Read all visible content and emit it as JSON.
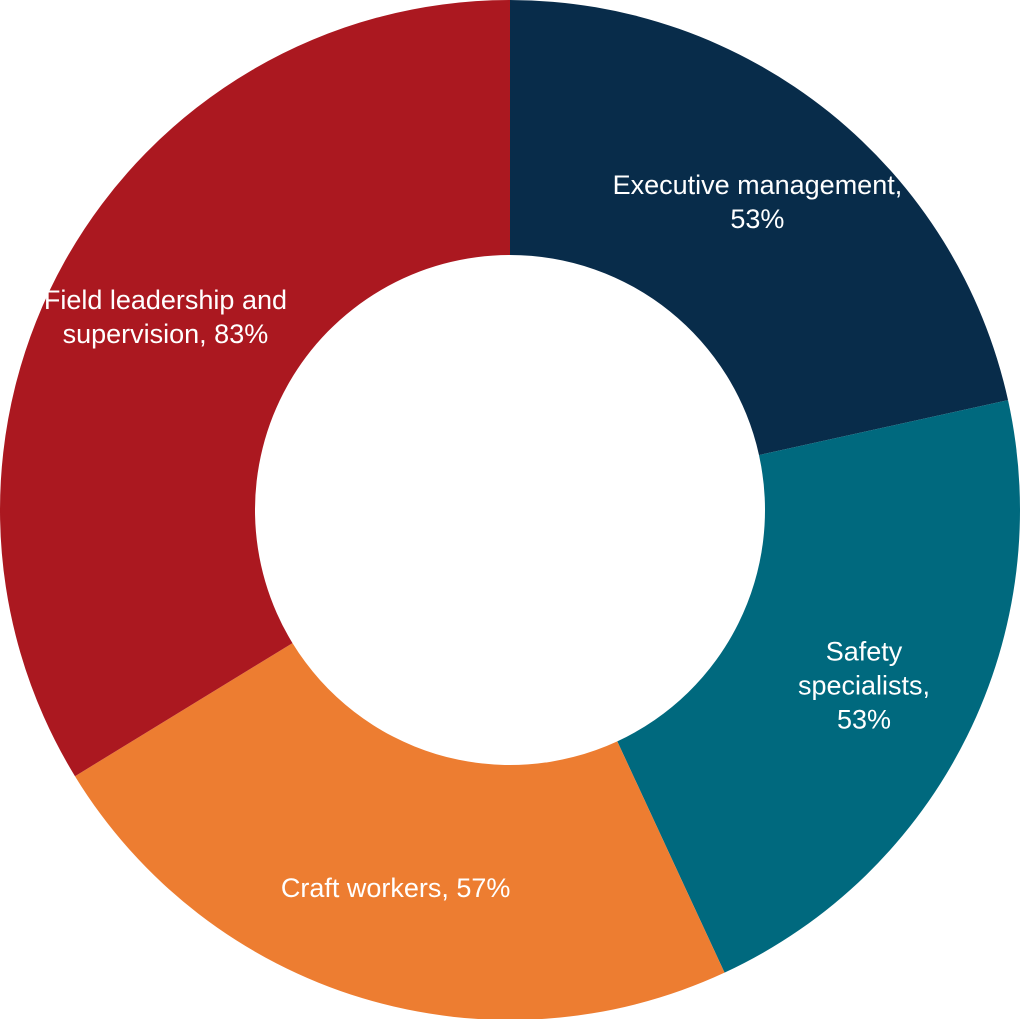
{
  "chart_data": {
    "type": "pie",
    "donut": true,
    "title": "",
    "slices": [
      {
        "name": "Executive management",
        "value": 53,
        "label_lines": [
          "Executive management,",
          "53%"
        ],
        "color": "#082c4a"
      },
      {
        "name": "Safety specialists",
        "value": 53,
        "label_lines": [
          "Safety",
          "specialists,",
          "53%"
        ],
        "color": "#00697e"
      },
      {
        "name": "Craft workers",
        "value": 57,
        "label_lines": [
          "Craft workers, 57%"
        ],
        "color": "#ed7d31"
      },
      {
        "name": "Field leadership and supervision",
        "value": 83,
        "label_lines": [
          "Field leadership and",
          "supervision, 83%"
        ],
        "color": "#ab1820"
      }
    ]
  }
}
